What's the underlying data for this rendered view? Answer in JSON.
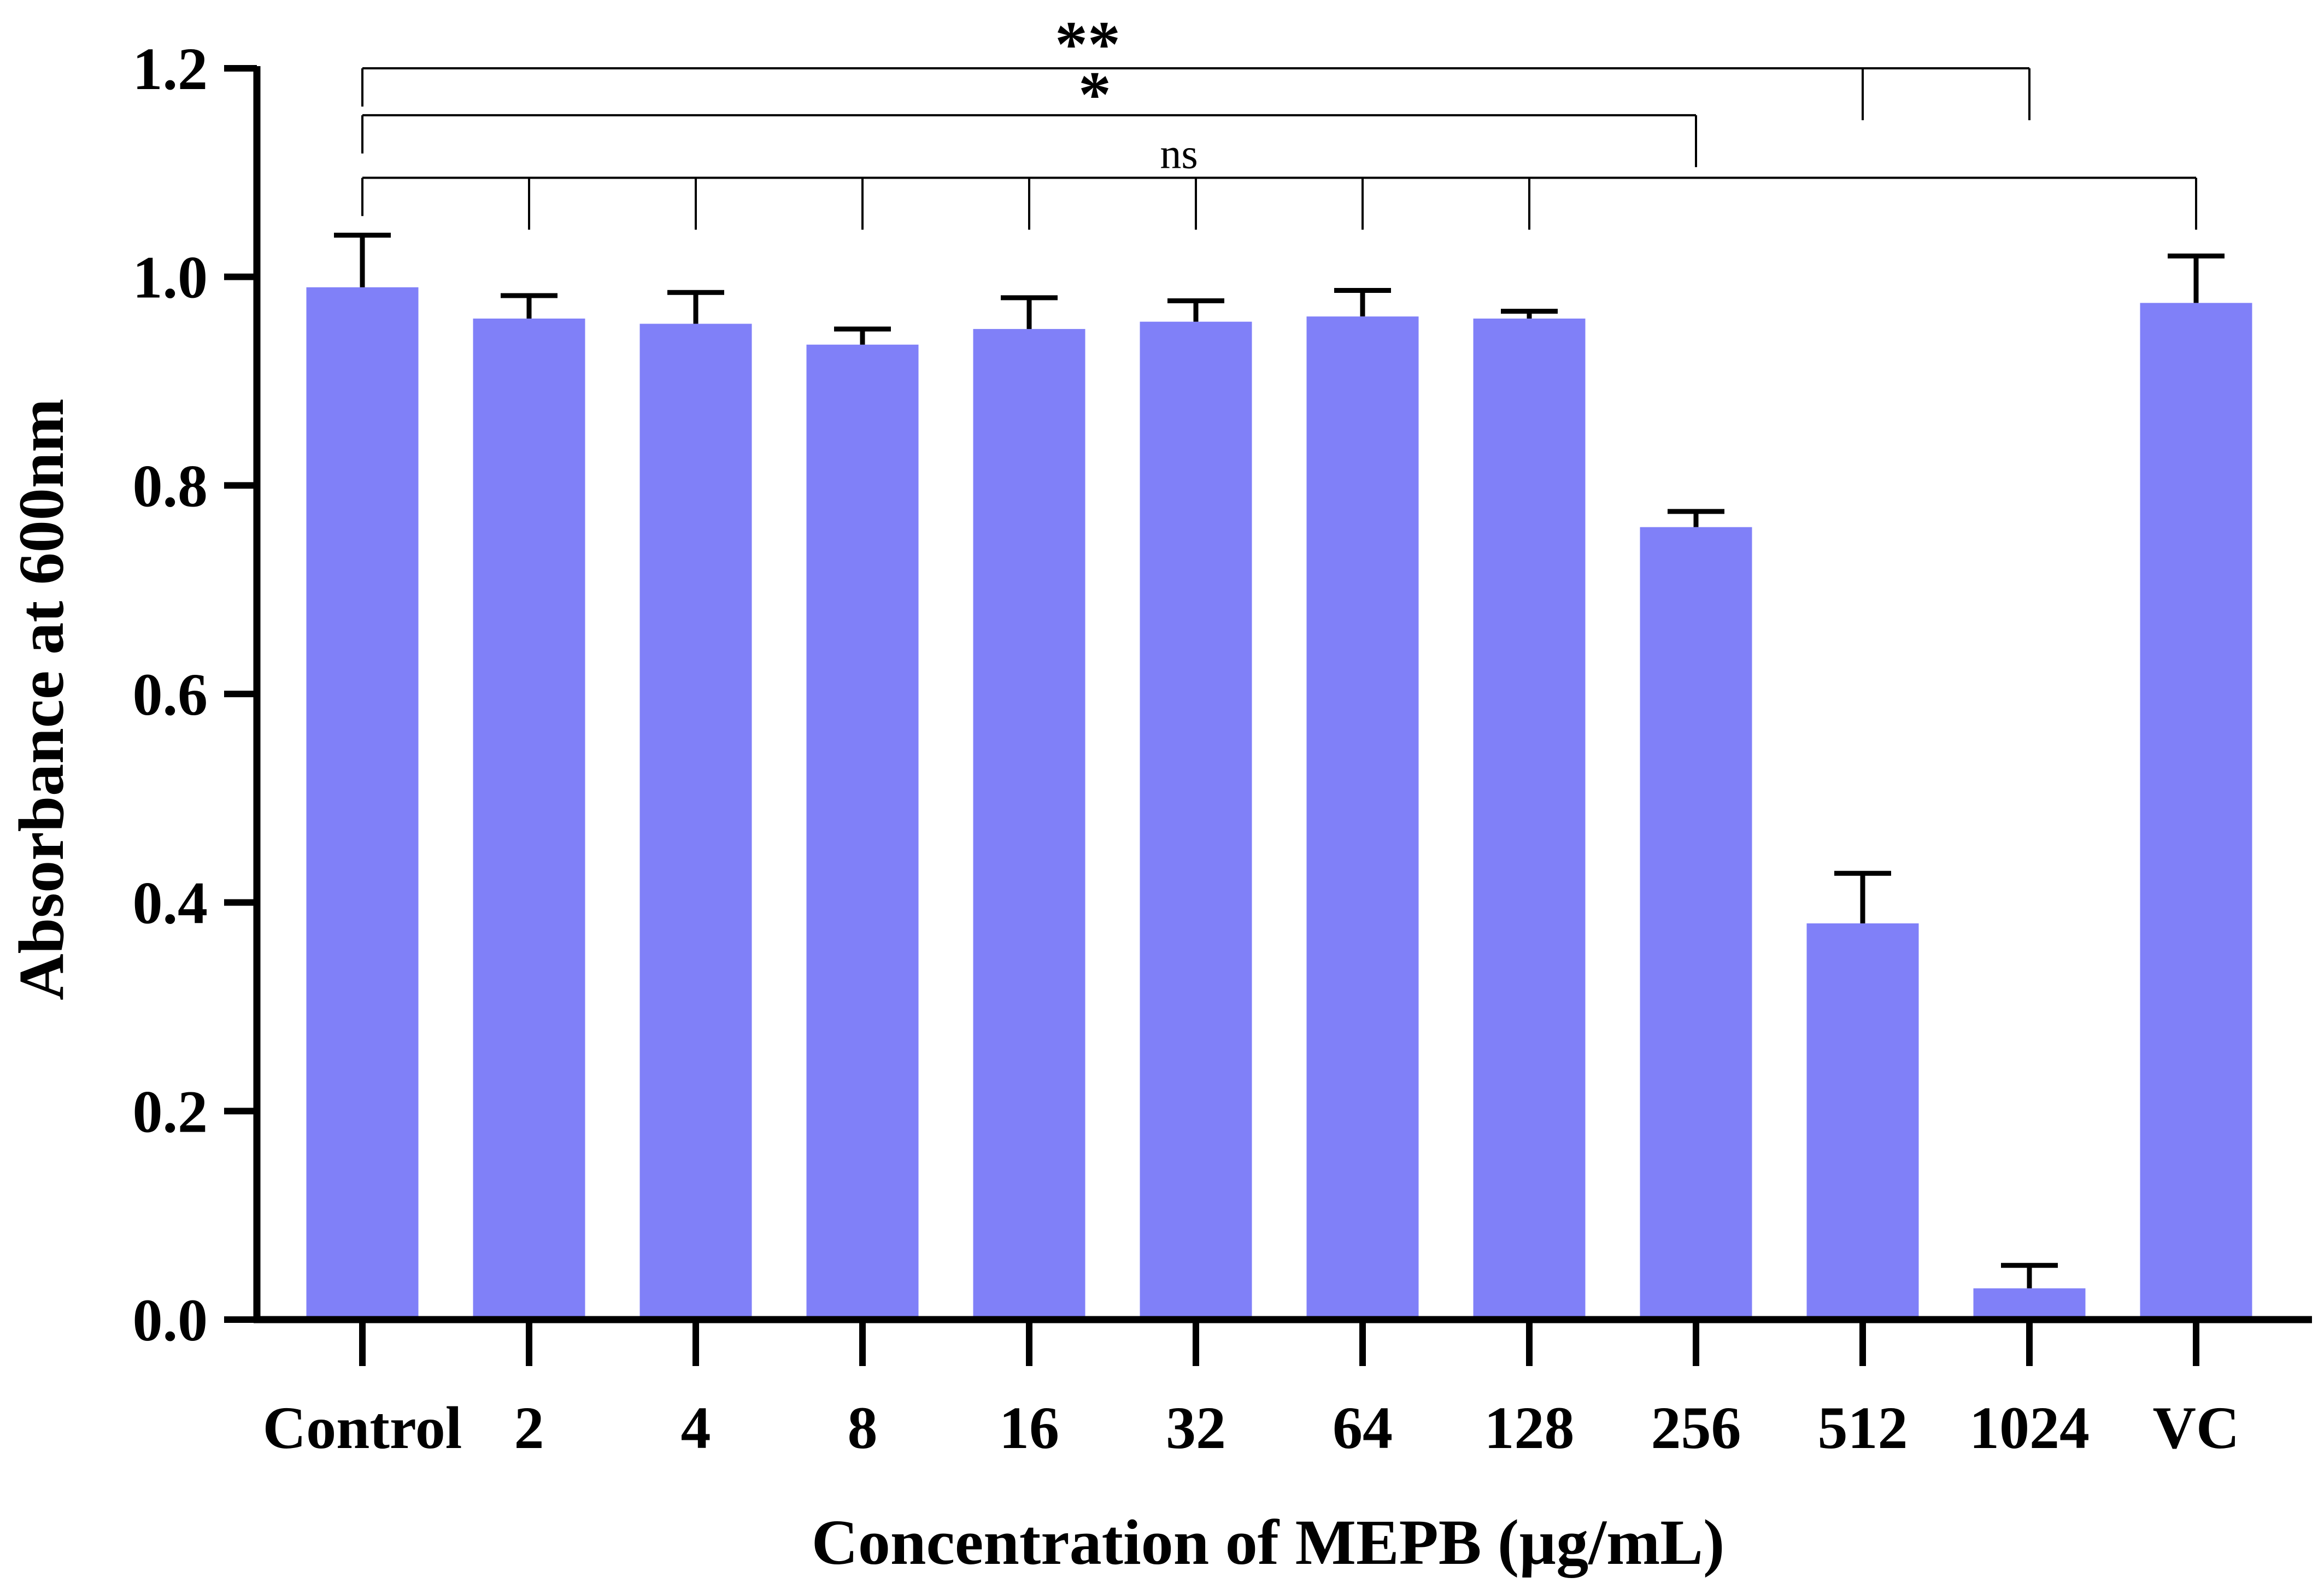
{
  "chart_data": {
    "type": "bar",
    "title": "",
    "xlabel": "Concentration of MEPB (µg/mL)",
    "ylabel": "Absorbance at 600nm",
    "ylim": [
      0,
      1.2
    ],
    "yticks": [
      "0.0",
      "0.2",
      "0.4",
      "0.6",
      "0.8",
      "1.0",
      "1.2"
    ],
    "categories": [
      "Control",
      "2",
      "4",
      "8",
      "16",
      "32",
      "64",
      "128",
      "256",
      "512",
      "1024",
      "VC"
    ],
    "values": [
      0.99,
      0.96,
      0.955,
      0.935,
      0.95,
      0.957,
      0.962,
      0.96,
      0.76,
      0.38,
      0.03,
      0.975
    ],
    "error": [
      0.05,
      0.022,
      0.03,
      0.015,
      0.03,
      0.02,
      0.025,
      0.007,
      0.015,
      0.048,
      0.022,
      0.045
    ],
    "bar_color": "#8080f8",
    "significance": [
      {
        "label": "**",
        "level": 1.2,
        "from": "Control",
        "to": [
          "512",
          "1024"
        ]
      },
      {
        "label": "*",
        "level": 1.155,
        "from": "Control",
        "to": [
          "256"
        ]
      },
      {
        "label": "ns",
        "level": 1.095,
        "from": "Control",
        "to": [
          "2",
          "4",
          "8",
          "16",
          "32",
          "64",
          "128",
          "VC"
        ]
      }
    ]
  }
}
